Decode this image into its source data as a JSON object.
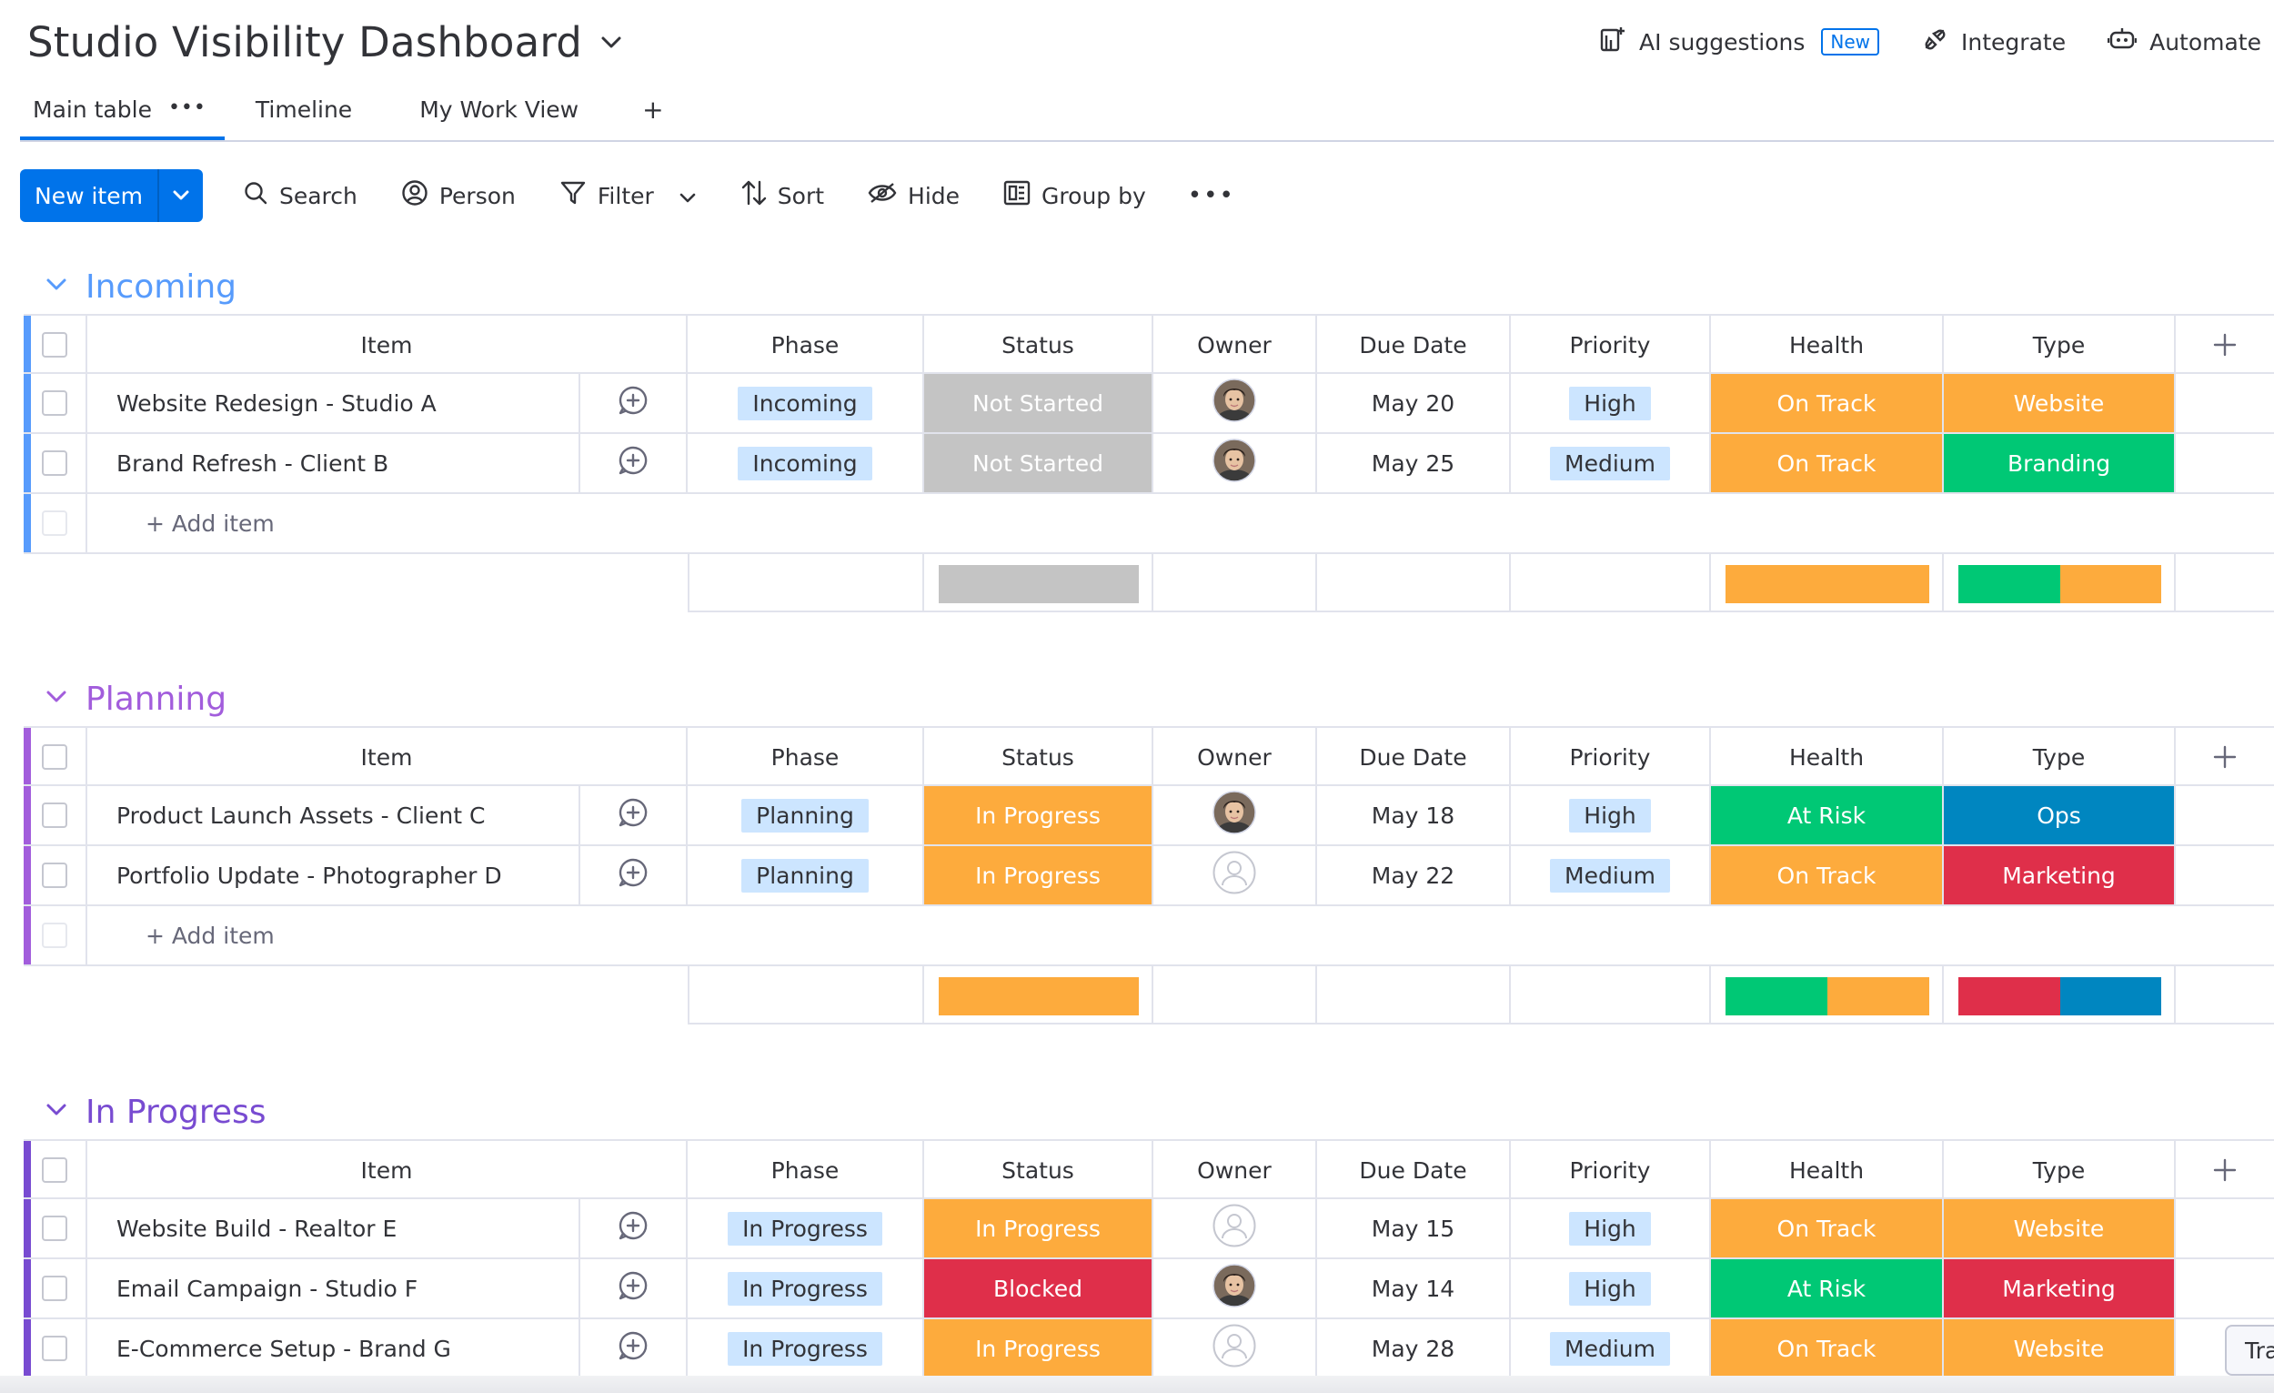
{
  "header": {
    "title": "Studio Visibility Dashboard",
    "actions": [
      {
        "label": "AI suggestions",
        "badge": "New",
        "icon": "ai-suggestions-icon"
      },
      {
        "label": "Integrate",
        "icon": "integrate-icon"
      },
      {
        "label": "Automate",
        "icon": "automate-icon"
      }
    ]
  },
  "tabs": [
    {
      "label": "Main table",
      "active": true
    },
    {
      "label": "Timeline"
    },
    {
      "label": "My Work View"
    }
  ],
  "tab_add": "+",
  "toolbar": {
    "new_item": "New item",
    "search": "Search",
    "person": "Person",
    "filter": "Filter",
    "sort": "Sort",
    "hide": "Hide",
    "group_by": "Group by"
  },
  "columns": [
    "Item",
    "Phase",
    "Status",
    "Owner",
    "Due Date",
    "Priority",
    "Health",
    "Type"
  ],
  "add_item": "+ Add item",
  "colors": {
    "incoming": "#579bfc",
    "planning": "#a25ddc",
    "in_progress": "#784bd1",
    "not_started": "#c4c4c4",
    "working": "#fdab3d",
    "done": "#00c875",
    "stuck": "#df2f4a",
    "ops": "#0086c0"
  },
  "groups": [
    {
      "title": "Incoming",
      "color": "#579bfc",
      "rows": [
        {
          "item": "Website Redesign - Studio A",
          "phase": "Incoming",
          "status": "Not Started",
          "status_color": "#c4c4c4",
          "owner": "photo",
          "due": "May 20",
          "priority": "High",
          "health": "On Track",
          "health_color": "#fdab3d",
          "type": "Website",
          "type_color": "#fdab3d"
        },
        {
          "item": "Brand Refresh - Client B",
          "phase": "Incoming",
          "status": "Not Started",
          "status_color": "#c4c4c4",
          "owner": "photo",
          "due": "May 25",
          "priority": "Medium",
          "health": "On Track",
          "health_color": "#fdab3d",
          "type": "Branding",
          "type_color": "#00c875"
        }
      ],
      "summary": {
        "status": [
          {
            "color": "#c4c4c4",
            "share": 1
          }
        ],
        "health": [
          {
            "color": "#fdab3d",
            "share": 1
          }
        ],
        "type": [
          {
            "color": "#00c875",
            "share": 0.5
          },
          {
            "color": "#fdab3d",
            "share": 0.5
          }
        ]
      }
    },
    {
      "title": "Planning",
      "color": "#a25ddc",
      "rows": [
        {
          "item": "Product Launch Assets - Client C",
          "phase": "Planning",
          "status": "In Progress",
          "status_color": "#fdab3d",
          "owner": "photo",
          "due": "May 18",
          "priority": "High",
          "health": "At Risk",
          "health_color": "#00c875",
          "type": "Ops",
          "type_color": "#0086c0"
        },
        {
          "item": "Portfolio Update - Photographer D",
          "phase": "Planning",
          "status": "In Progress",
          "status_color": "#fdab3d",
          "owner": "empty",
          "due": "May 22",
          "priority": "Medium",
          "health": "On Track",
          "health_color": "#fdab3d",
          "type": "Marketing",
          "type_color": "#df2f4a"
        }
      ],
      "summary": {
        "status": [
          {
            "color": "#fdab3d",
            "share": 1
          }
        ],
        "health": [
          {
            "color": "#00c875",
            "share": 0.5
          },
          {
            "color": "#fdab3d",
            "share": 0.5
          }
        ],
        "type": [
          {
            "color": "#df2f4a",
            "share": 0.5
          },
          {
            "color": "#0086c0",
            "share": 0.5
          }
        ]
      }
    },
    {
      "title": "In Progress",
      "color": "#784bd1",
      "rows": [
        {
          "item": "Website Build - Realtor E",
          "phase": "In Progress",
          "status": "In Progress",
          "status_color": "#fdab3d",
          "owner": "empty",
          "due": "May 15",
          "priority": "High",
          "health": "On Track",
          "health_color": "#fdab3d",
          "type": "Website",
          "type_color": "#fdab3d"
        },
        {
          "item": "Email Campaign - Studio F",
          "phase": "In Progress",
          "status": "Blocked",
          "status_color": "#df2f4a",
          "owner": "photo",
          "due": "May 14",
          "priority": "High",
          "health": "At Risk",
          "health_color": "#00c875",
          "type": "Marketing",
          "type_color": "#df2f4a"
        },
        {
          "item": "E-Commerce Setup - Brand G",
          "phase": "In Progress",
          "status": "In Progress",
          "status_color": "#fdab3d",
          "owner": "empty",
          "due": "May 28",
          "priority": "Medium",
          "health": "On Track",
          "health_color": "#fdab3d",
          "type": "Website",
          "type_color": "#fdab3d"
        }
      ]
    }
  ],
  "toast_text": "Tra"
}
